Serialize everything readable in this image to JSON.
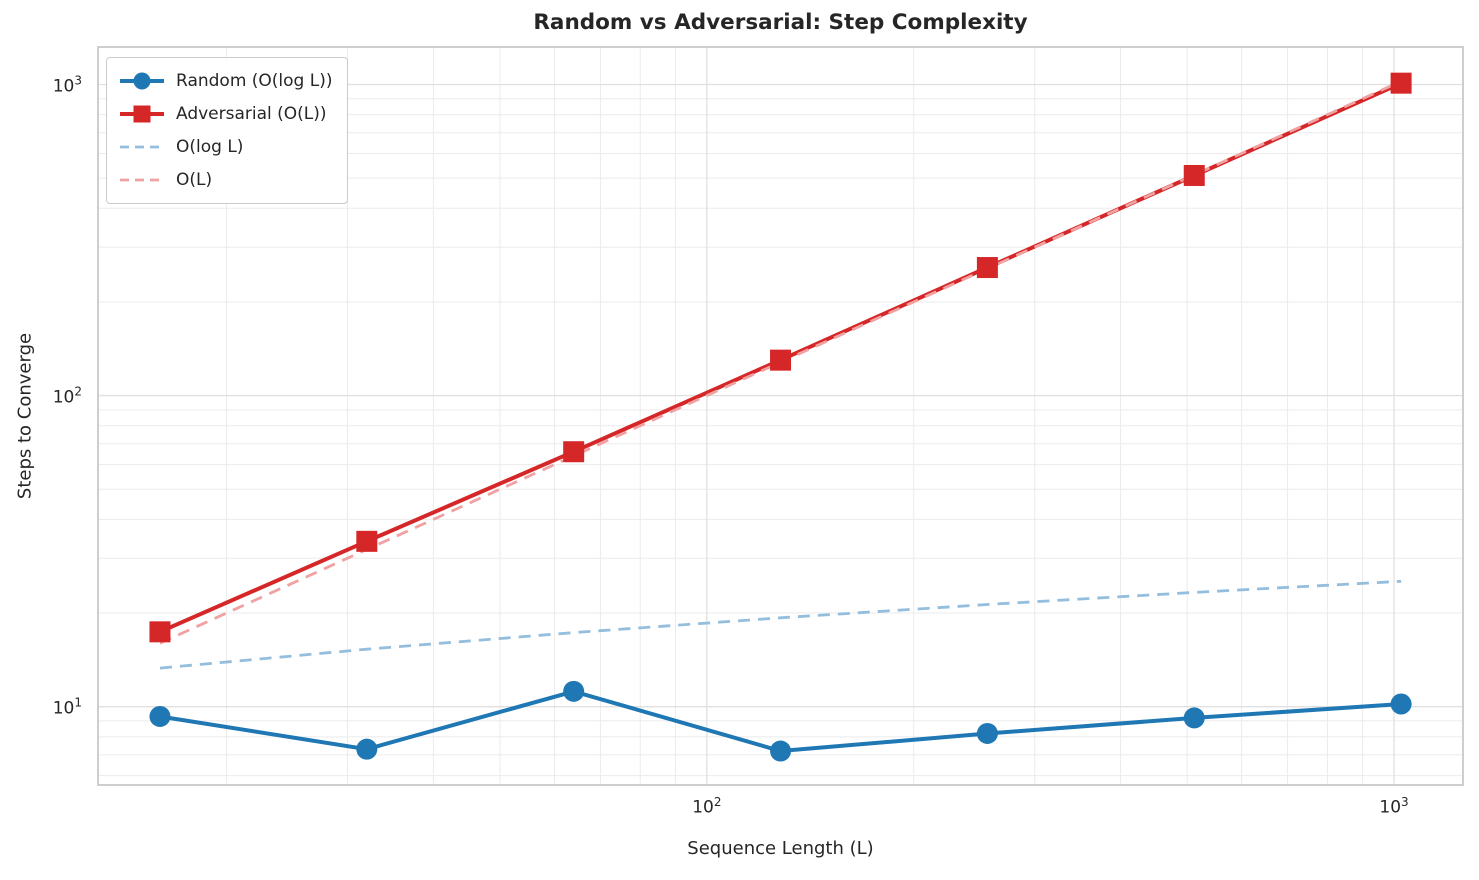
{
  "chart_data": {
    "type": "line",
    "title": "Random vs Adversarial: Step Complexity",
    "xlabel": "Sequence Length (L)",
    "ylabel": "Steps to Converge",
    "x_scale": "log",
    "y_scale": "log",
    "xlim": [
      13.0,
      1260
    ],
    "ylim": [
      5.6,
      1320
    ],
    "x": [
      16,
      32,
      64,
      128,
      256,
      512,
      1024
    ],
    "series": [
      {
        "name": "Random (O(log L))",
        "values": [
          9.3,
          7.3,
          11.2,
          7.2,
          8.2,
          9.2,
          10.2
        ],
        "color": "#1f77b4",
        "line": "solid",
        "marker": "circle"
      },
      {
        "name": "Adversarial (O(L))",
        "values": [
          17.4,
          34,
          66,
          130,
          258,
          510,
          1010
        ],
        "color": "#d62728",
        "line": "solid",
        "marker": "square"
      },
      {
        "name": "O(log L)",
        "values": [
          13.3,
          15.3,
          17.3,
          19.3,
          21.3,
          23.3,
          25.3
        ],
        "color": "#94bedd",
        "line": "dashed",
        "marker": "none"
      },
      {
        "name": "O(L)",
        "values": [
          16,
          32,
          64,
          128,
          256,
          512,
          1024
        ],
        "color": "#f0a2a3",
        "line": "dashed",
        "marker": "none"
      }
    ],
    "xticks": [
      {
        "text": "10",
        "exp": "2",
        "value": 100
      },
      {
        "text": "10",
        "exp": "3",
        "value": 1000
      }
    ],
    "yticks": [
      {
        "text": "10",
        "exp": "1",
        "value": 10
      },
      {
        "text": "10",
        "exp": "2",
        "value": 100
      },
      {
        "text": "10",
        "exp": "3",
        "value": 1000
      }
    ],
    "legend_position": "upper left",
    "grid": "major+minor",
    "colors": {
      "background": "#ffffff",
      "spine": "#c9c9c9",
      "grid_major": "#e0e0e0",
      "grid_minor": "#ebebeb",
      "text": "#262626"
    }
  }
}
